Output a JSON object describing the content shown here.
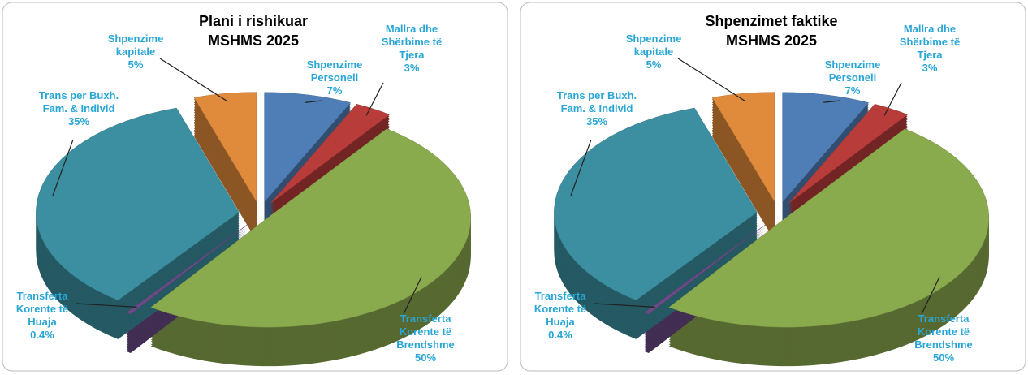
{
  "chart_data": [
    {
      "type": "pie",
      "title": "Plani i rishikuar MSHMS 2025",
      "categories": [
        "Shpenzime Personeli",
        "Mallra dhe Shërbime të Tjera",
        "Transferta Korente të Brendshme",
        "Transferta Korente të Huaja",
        "Trans per Buxh. Fam. & Individ",
        "Shpenzime kapitale"
      ],
      "values": [
        7,
        3,
        50,
        0.4,
        35,
        5
      ],
      "value_labels": [
        "7%",
        "3%",
        "50%",
        "0.4%",
        "35%",
        "5%"
      ],
      "colors": [
        "#4f7db5",
        "#b83c3a",
        "#8aaa4e",
        "#6a4a85",
        "#3c8fa0",
        "#e08a3c"
      ]
    },
    {
      "type": "pie",
      "title": "Shpenzimet faktike MSHMS 2025",
      "categories": [
        "Shpenzime Personeli",
        "Mallra dhe Shërbime të Tjera",
        "Transferta Korente të Brendshme",
        "Transferta Korente të Huaja",
        "Trans per Buxh. Fam. & Individ",
        "Shpenzime kapitale"
      ],
      "values": [
        7,
        3,
        50,
        0.4,
        35,
        5
      ],
      "value_labels": [
        "7%",
        "3%",
        "50%",
        "0.4%",
        "35%",
        "5%"
      ],
      "colors": [
        "#4f7db5",
        "#b83c3a",
        "#8aaa4e",
        "#6a4a85",
        "#3c8fa0",
        "#e08a3c"
      ]
    }
  ]
}
